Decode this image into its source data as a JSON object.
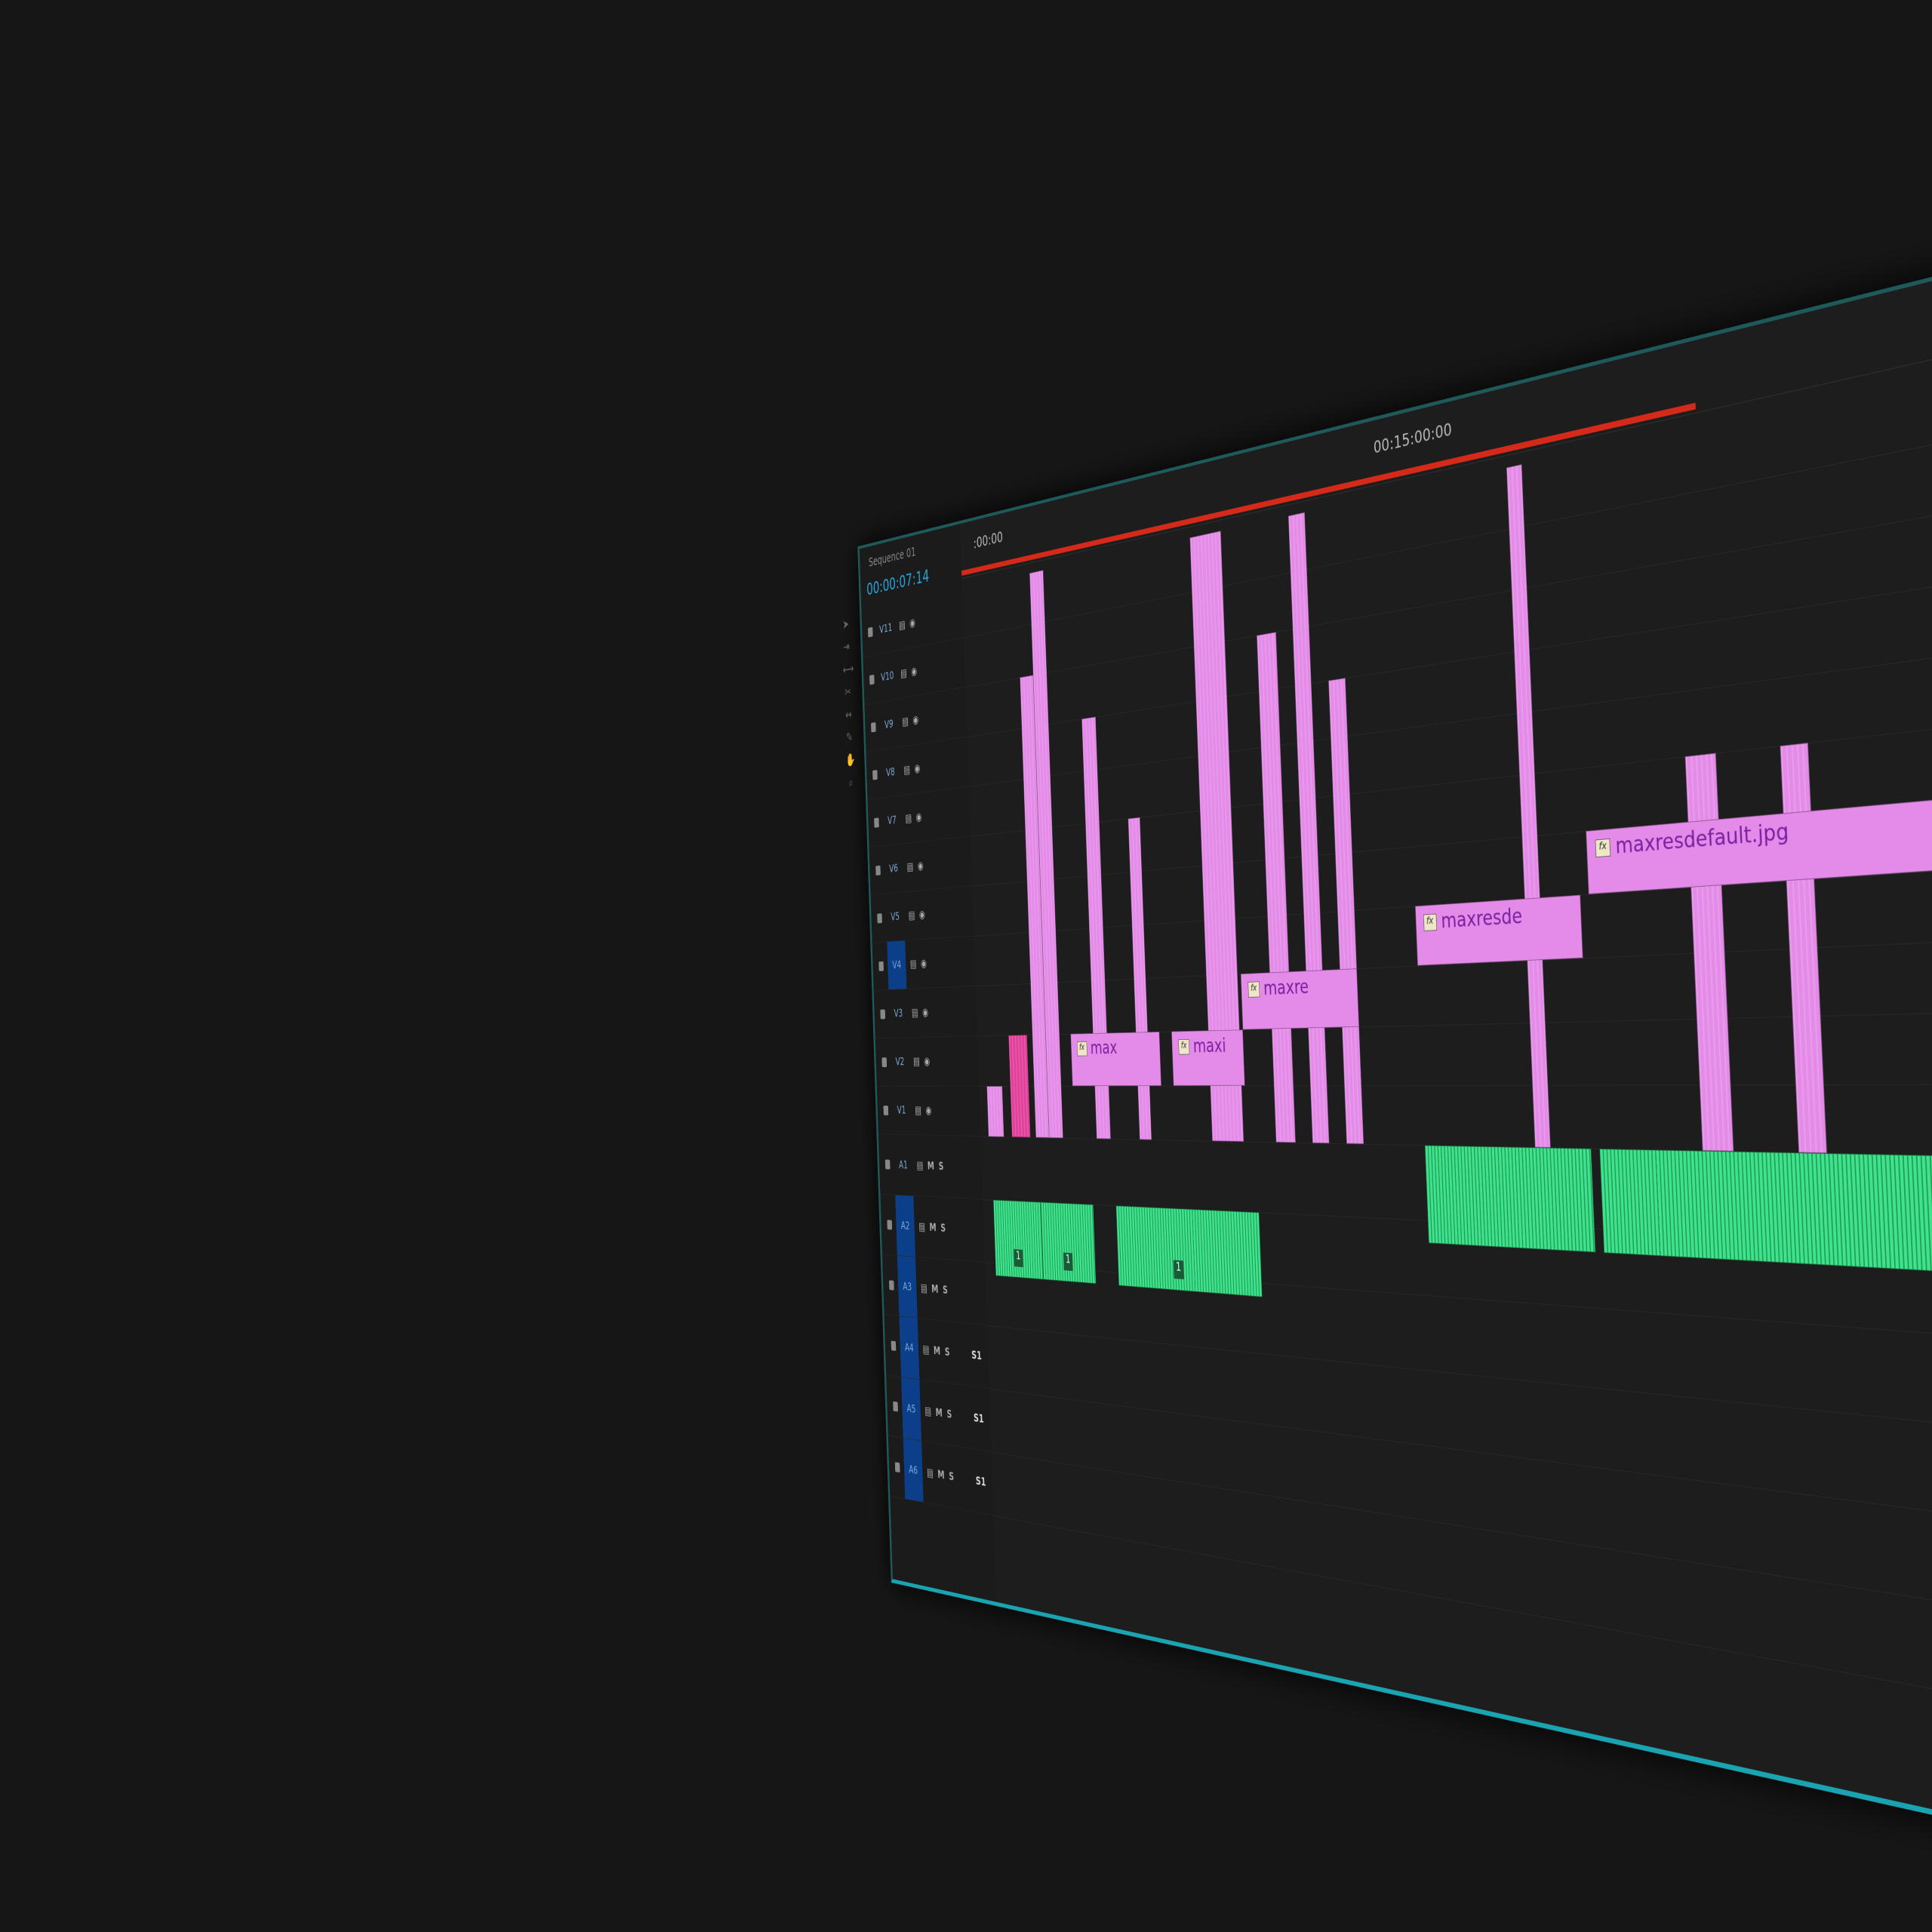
{
  "sequence_tab": "Sequence 01",
  "timecode": "00:00:07:14",
  "ruler": {
    "start_label": ":00:00",
    "mid_label": "00:15:00:00",
    "range_minutes": [
      0,
      30
    ],
    "work_area_minutes": [
      0,
      22
    ]
  },
  "colors": {
    "video_clip": "#e48ae8",
    "video_clip_alt": "#e0409a",
    "audio_clip": "#3fe38e",
    "selected_track": "#0c3f8a",
    "work_area": "#d52a1a"
  },
  "video_tracks": [
    {
      "label": "V11"
    },
    {
      "label": "V10"
    },
    {
      "label": "V9"
    },
    {
      "label": "V8"
    },
    {
      "label": "V7"
    },
    {
      "label": "V6"
    },
    {
      "label": "V5"
    },
    {
      "label": "V4",
      "targeted": true
    },
    {
      "label": "V3"
    },
    {
      "label": "V2"
    },
    {
      "label": "V1",
      "source_patch": "V1"
    }
  ],
  "audio_tracks": [
    {
      "label": "A1",
      "mute": "M",
      "solo": "S"
    },
    {
      "label": "A2",
      "mute": "M",
      "solo": "S",
      "targeted": true
    },
    {
      "label": "A3",
      "mute": "M",
      "solo": "S",
      "targeted": true
    },
    {
      "label": "A4",
      "mute": "M",
      "solo": "S",
      "targeted": true,
      "submix": "S1"
    },
    {
      "label": "A5",
      "mute": "M",
      "solo": "S",
      "targeted": true,
      "submix": "S1"
    },
    {
      "label": "A6",
      "mute": "M",
      "solo": "S",
      "targeted": true,
      "submix": "S1"
    }
  ],
  "labeled_clips": [
    {
      "track": "V2",
      "start": 3.5,
      "end": 6.6,
      "name": "max"
    },
    {
      "track": "V2",
      "start": 7.0,
      "end": 9.3,
      "name": "maxi"
    },
    {
      "track": "V3",
      "start": 9.3,
      "end": 12.8,
      "name": "maxre"
    },
    {
      "track": "V4",
      "start": 14.5,
      "end": 18.8,
      "name": "maxresde"
    },
    {
      "track": "V5",
      "start": 19.0,
      "end": 27.0,
      "name": "maxresdefault.jpg"
    }
  ],
  "stacked_clips": [
    {
      "start": 0.3,
      "end": 0.9,
      "top_track": 1,
      "color": "#e48ae8"
    },
    {
      "start": 1.2,
      "end": 1.9,
      "top_track": 2,
      "color": "#e0409a"
    },
    {
      "start": 2.1,
      "end": 2.6,
      "top_track": 9,
      "color": "#e48ae8"
    },
    {
      "start": 2.6,
      "end": 3.1,
      "top_track": 11,
      "color": "#e48ae8"
    },
    {
      "start": 4.3,
      "end": 4.8,
      "top_track": 8,
      "color": "#e48ae8"
    },
    {
      "start": 5.8,
      "end": 6.2,
      "top_track": 6,
      "color": "#e48ae8"
    },
    {
      "start": 8.2,
      "end": 9.2,
      "top_track": 11,
      "color": "#e48ae8"
    },
    {
      "start": 10.2,
      "end": 10.8,
      "top_track": 9,
      "color": "#e48ae8"
    },
    {
      "start": 11.3,
      "end": 11.8,
      "top_track": 11,
      "color": "#e48ae8"
    },
    {
      "start": 12.3,
      "end": 12.8,
      "top_track": 8,
      "color": "#e48ae8"
    },
    {
      "start": 17.4,
      "end": 17.8,
      "top_track": 11,
      "color": "#e48ae8"
    },
    {
      "start": 21.4,
      "end": 22.1,
      "top_track": 6,
      "color": "#e48ae8"
    },
    {
      "start": 23.5,
      "end": 24.1,
      "top_track": 6,
      "color": "#e48ae8"
    }
  ],
  "audio_clips": [
    {
      "track": "A2",
      "start": 0.4,
      "end": 2.2,
      "marker": "1"
    },
    {
      "track": "A2",
      "start": 2.2,
      "end": 4.1,
      "marker": "1"
    },
    {
      "track": "A2",
      "start": 4.9,
      "end": 9.6,
      "marker": "1"
    },
    {
      "track": "A1",
      "start": 14.5,
      "end": 18.8
    },
    {
      "track": "A1",
      "start": 19.0,
      "end": 27.5
    }
  ]
}
